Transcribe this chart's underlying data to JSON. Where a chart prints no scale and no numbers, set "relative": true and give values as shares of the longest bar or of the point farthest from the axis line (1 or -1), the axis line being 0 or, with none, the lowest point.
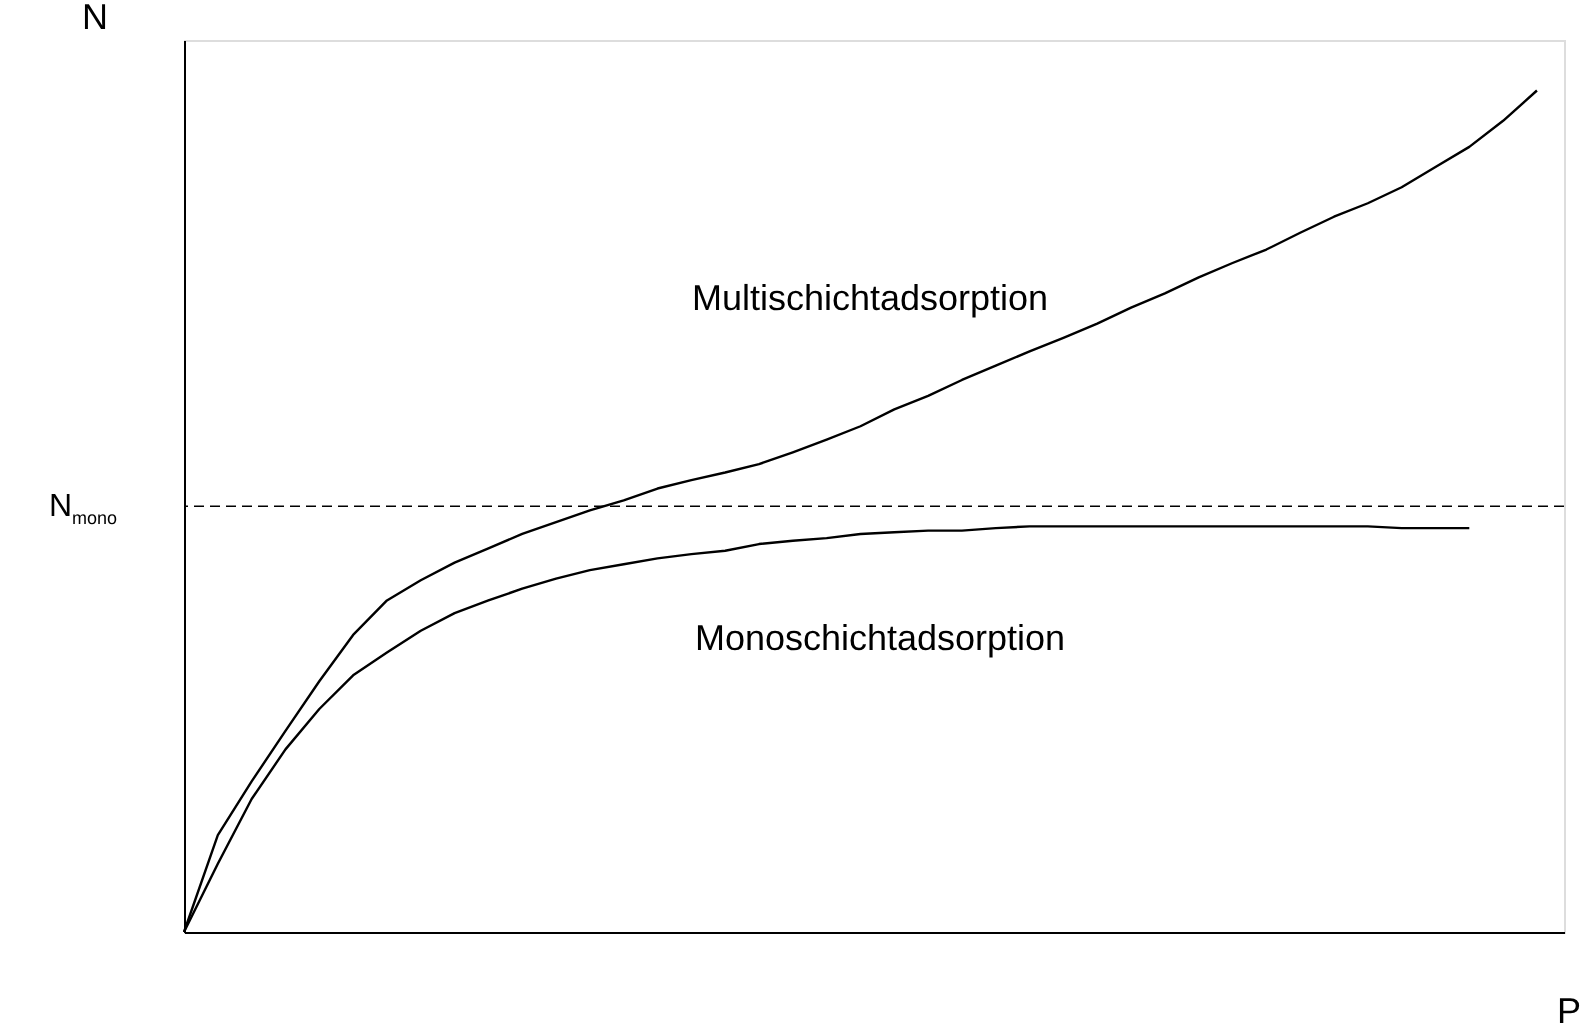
{
  "chart_data": {
    "type": "line",
    "relative": true,
    "xlabel": "P",
    "ylabel": "N",
    "line_style": "solid",
    "marker": "none",
    "grid": false,
    "legend": false,
    "categories": [
      null,
      null,
      null,
      null,
      null,
      null,
      null,
      null,
      null,
      null,
      null,
      null,
      null,
      null,
      null,
      null,
      null,
      null,
      null,
      null,
      null,
      null,
      null,
      null,
      null,
      null,
      null,
      null,
      null,
      null,
      null,
      null,
      null,
      null,
      null,
      null,
      null,
      null,
      null,
      null,
      null
    ],
    "series": [
      {
        "color": "#000000",
        "values": [
          0,
          0.115,
          0.179,
          0.239,
          0.298,
          0.353,
          0.394,
          0.418,
          0.439,
          0.456,
          0.473,
          0.487,
          0.501,
          0.513,
          0.527,
          0.537,
          0.546,
          0.556,
          0.57,
          0.585,
          0.601,
          0.621,
          0.637,
          0.656,
          0.673,
          0.69,
          0.706,
          0.723,
          0.742,
          0.759,
          0.778,
          0.795,
          0.811,
          0.831,
          0.85,
          0.866,
          0.885,
          0.909,
          0.933,
          0.964,
          1
        ]
      },
      {
        "color": "#000000",
        "values": [
          0,
          0.081,
          0.158,
          0.217,
          0.265,
          0.305,
          0.332,
          0.358,
          0.379,
          0.394,
          0.408,
          0.42,
          0.43,
          0.437,
          0.444,
          0.449,
          0.453,
          0.461,
          0.465,
          0.468,
          0.473,
          0.475,
          0.477,
          0.477,
          0.48,
          0.482,
          0.482,
          0.482,
          0.482,
          0.482,
          0.482,
          0.482,
          0.482,
          0.482,
          0.482,
          0.482,
          0.48,
          0.48,
          0.48,
          null,
          null
        ]
      }
    ],
    "ref_lines": [
      {
        "axis": "y",
        "value": 0.506,
        "label": "N$_{mono}$",
        "line_style": "dashed",
        "color": "#000000"
      }
    ],
    "annotations": [
      "Multischichtadsorption",
      "Monoschichtadsorption"
    ]
  }
}
